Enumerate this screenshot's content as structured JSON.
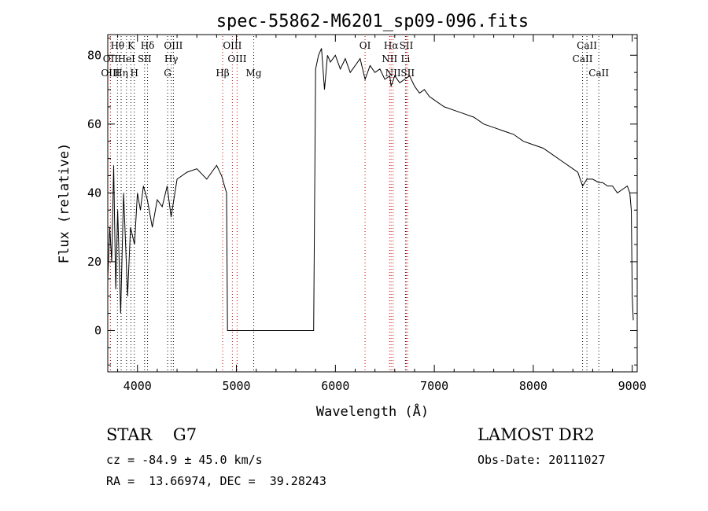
{
  "chart_data": {
    "type": "line",
    "title": "spec-55862-M6201_sp09-096.fits",
    "xlabel": "Wavelength (Å)",
    "ylabel": "Flux (relative)",
    "xlim": [
      3700,
      9050
    ],
    "ylim": [
      -12,
      86
    ],
    "xticks": [
      4000,
      5000,
      6000,
      7000,
      8000,
      9000
    ],
    "yticks": [
      0,
      20,
      40,
      60,
      80
    ],
    "grid": false,
    "series": [
      {
        "color": "#000000",
        "x": [
          3700,
          3720,
          3740,
          3760,
          3780,
          3800,
          3830,
          3860,
          3900,
          3930,
          3970,
          4000,
          4030,
          4060,
          4100,
          4150,
          4200,
          4250,
          4300,
          4340,
          4400,
          4500,
          4600,
          4700,
          4800,
          4850,
          4880,
          4900,
          4910,
          4950,
          5000,
          5200,
          5400,
          5600,
          5780,
          5800,
          5830,
          5860,
          5890,
          5920,
          5950,
          6000,
          6050,
          6100,
          6150,
          6200,
          6250,
          6300,
          6350,
          6400,
          6450,
          6500,
          6550,
          6563,
          6600,
          6650,
          6700,
          6750,
          6800,
          6850,
          6900,
          6950,
          7000,
          7100,
          7200,
          7300,
          7400,
          7500,
          7600,
          7700,
          7800,
          7900,
          8000,
          8100,
          8200,
          8300,
          8400,
          8450,
          8498,
          8542,
          8600,
          8662,
          8700,
          8750,
          8800,
          8850,
          8900,
          8950,
          8975,
          8990,
          9000,
          9010
        ],
        "y": [
          15,
          30,
          20,
          48,
          12,
          35,
          5,
          40,
          10,
          30,
          25,
          40,
          35,
          42,
          38,
          30,
          38,
          36,
          42,
          33,
          44,
          46,
          47,
          44,
          48,
          45,
          42,
          40,
          0,
          0,
          0,
          0,
          0,
          0,
          0,
          76,
          80,
          82,
          70,
          80,
          78,
          80,
          76,
          79,
          75,
          77,
          79,
          73,
          77,
          75,
          76,
          73,
          74,
          71,
          74,
          72,
          73,
          74,
          71,
          69,
          70,
          68,
          67,
          65,
          64,
          63,
          62,
          60,
          59,
          58,
          57,
          55,
          54,
          53,
          51,
          49,
          47,
          46,
          42,
          44,
          44,
          43,
          43,
          42,
          42,
          40,
          41,
          42,
          40,
          35,
          10,
          3
        ]
      }
    ],
    "lines": [
      {
        "label": "Hθ",
        "x": 3798,
        "row": 1,
        "color": "#000000"
      },
      {
        "label": "K",
        "x": 3934,
        "row": 1,
        "color": "#000000"
      },
      {
        "label": "Hδ",
        "x": 4102,
        "row": 1,
        "color": "#000000"
      },
      {
        "label": "OIII",
        "x": 4363,
        "row": 1,
        "color": "#000000"
      },
      {
        "label": "OIII",
        "x": 4959,
        "row": 1,
        "color": "#cc0000"
      },
      {
        "label": "OI",
        "x": 6300,
        "row": 1,
        "color": "#cc0000"
      },
      {
        "label": "Hα",
        "x": 6563,
        "row": 1,
        "color": "#cc0000"
      },
      {
        "label": "SII",
        "x": 6717,
        "row": 1,
        "color": "#cc0000"
      },
      {
        "label": "CaII",
        "x": 8542,
        "row": 1,
        "color": "#000000"
      },
      {
        "label": "OII",
        "x": 3727,
        "row": 2,
        "color": "#cc0000"
      },
      {
        "label": "HeI",
        "x": 3889,
        "row": 2,
        "color": "#000000"
      },
      {
        "label": "SII",
        "x": 4072,
        "row": 2,
        "color": "#000000"
      },
      {
        "label": "Hγ",
        "x": 4341,
        "row": 2,
        "color": "#000000"
      },
      {
        "label": "OIII",
        "x": 5007,
        "row": 2,
        "color": "#cc0000"
      },
      {
        "label": "NII",
        "x": 6548,
        "row": 2,
        "color": "#cc0000"
      },
      {
        "label": "Li",
        "x": 6708,
        "row": 2,
        "color": "#000000"
      },
      {
        "label": "CaII",
        "x": 8498,
        "row": 2,
        "color": "#000000"
      },
      {
        "label": "OIII",
        "x": 3727,
        "row": 3,
        "color": "#cc0000"
      },
      {
        "label": "Hη",
        "x": 3835,
        "row": 3,
        "color": "#000000"
      },
      {
        "label": "H",
        "x": 3968,
        "row": 3,
        "color": "#000000"
      },
      {
        "label": "G",
        "x": 4305,
        "row": 3,
        "color": "#000000"
      },
      {
        "label": "Hβ",
        "x": 4861,
        "row": 3,
        "color": "#cc0000"
      },
      {
        "label": "Mg",
        "x": 5175,
        "row": 3,
        "color": "#000000"
      },
      {
        "label": "NII",
        "x": 6583,
        "row": 3,
        "color": "#cc0000"
      },
      {
        "label": "SII",
        "x": 6731,
        "row": 3,
        "color": "#cc0000"
      },
      {
        "label": "CaII",
        "x": 8662,
        "row": 3,
        "color": "#000000"
      }
    ]
  },
  "info": {
    "object_type": "STAR    G7",
    "survey": "LAMOST DR2",
    "cz": "cz = -84.9 ± 45.0 km/s",
    "obs_date": "Obs-Date: 20111027",
    "radec": "RA =  13.66974, DEC =  39.28243"
  }
}
